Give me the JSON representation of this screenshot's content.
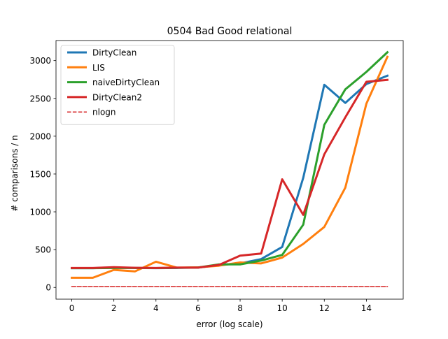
{
  "chart_data": {
    "type": "line",
    "title": "0504 Bad Good relational",
    "xlabel": "error (log scale)",
    "ylabel": "# comparisons / n",
    "xlim": [
      -0.75,
      15.75
    ],
    "ylim": [
      -155,
      3265
    ],
    "x_ticks": [
      0,
      2,
      4,
      6,
      8,
      10,
      12,
      14
    ],
    "y_ticks": [
      0,
      500,
      1000,
      1500,
      2000,
      2500,
      3000
    ],
    "grid": false,
    "legend_position": "top-left",
    "x": [
      0,
      1,
      2,
      3,
      4,
      5,
      6,
      7,
      8,
      9,
      10,
      11,
      12,
      13,
      14,
      15
    ],
    "series": [
      {
        "name": "DirtyClean",
        "color": "#1f77b4",
        "dash": "solid",
        "values": [
          255,
          255,
          262,
          258,
          255,
          258,
          262,
          298,
          318,
          375,
          535,
          1450,
          2680,
          2440,
          2690,
          2800
        ]
      },
      {
        "name": "LIS",
        "color": "#ff7f0e",
        "dash": "solid",
        "values": [
          128,
          128,
          232,
          212,
          340,
          262,
          265,
          288,
          330,
          318,
          395,
          575,
          800,
          1320,
          2430,
          3050
        ]
      },
      {
        "name": "naiveDirtyClean",
        "color": "#2ca02c",
        "dash": "solid",
        "values": [
          255,
          255,
          258,
          258,
          256,
          260,
          263,
          305,
          305,
          355,
          430,
          830,
          2150,
          2620,
          2850,
          3110
        ]
      },
      {
        "name": "DirtyClean2",
        "color": "#d62728",
        "dash": "solid",
        "values": [
          258,
          258,
          268,
          260,
          258,
          262,
          262,
          298,
          420,
          448,
          1430,
          960,
          1760,
          2250,
          2720,
          2745
        ]
      },
      {
        "name": "nlogn",
        "color": "#d62728",
        "dash": "dashed",
        "values": [
          12,
          12,
          12,
          12,
          12,
          12,
          12,
          12,
          12,
          12,
          12,
          12,
          12,
          12,
          12,
          12
        ]
      }
    ]
  }
}
